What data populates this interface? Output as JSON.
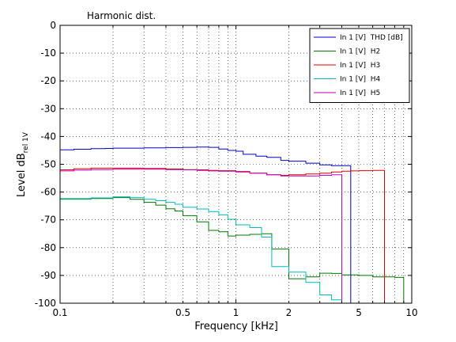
{
  "chart_data": {
    "type": "line",
    "title": "Harmonic dist.",
    "xlabel": "Frequency [kHz]",
    "ylabel_main": "Level dB",
    "ylabel_sub": "rel 1V",
    "xscale": "log",
    "xlim": [
      0.1,
      10
    ],
    "ylim": [
      -100,
      0
    ],
    "grid": true,
    "legend_position": "top-right",
    "x_ticks": [
      {
        "value": 0.1,
        "label": "0.1"
      },
      {
        "value": 0.5,
        "label": "0.5"
      },
      {
        "value": 1,
        "label": "1"
      },
      {
        "value": 2,
        "label": "2"
      },
      {
        "value": 5,
        "label": "5"
      },
      {
        "value": 10,
        "label": "10"
      }
    ],
    "y_ticks": [
      {
        "value": 0,
        "label": "0"
      },
      {
        "value": -10,
        "label": "-10"
      },
      {
        "value": -20,
        "label": "-20"
      },
      {
        "value": -30,
        "label": "-30"
      },
      {
        "value": -40,
        "label": "-40"
      },
      {
        "value": -50,
        "label": "-50"
      },
      {
        "value": -60,
        "label": "-60"
      },
      {
        "value": -70,
        "label": "-70"
      },
      {
        "value": -80,
        "label": "-80"
      },
      {
        "value": -90,
        "label": "-90"
      },
      {
        "value": -100,
        "label": "-100"
      }
    ],
    "series": [
      {
        "name": "In 1 [V]  THD [dB]",
        "color": "#0000cc",
        "x": [
          0.1,
          0.12,
          0.15,
          0.18,
          0.2,
          0.25,
          0.3,
          0.4,
          0.5,
          0.6,
          0.7,
          0.8,
          0.9,
          1.0,
          1.1,
          1.3,
          1.5,
          1.8,
          2.0,
          2.5,
          3.0,
          3.5,
          4.5
        ],
        "y": [
          -44.8,
          -44.6,
          -44.4,
          -44.3,
          -44.2,
          -44.2,
          -44.1,
          -44.0,
          -43.9,
          -43.8,
          -43.9,
          -44.5,
          -45.0,
          -45.3,
          -46.4,
          -47.1,
          -47.5,
          -48.6,
          -48.9,
          -49.6,
          -50.2,
          -50.5,
          -50.5
        ]
      },
      {
        "name": "In 1 [V]  H2",
        "color": "#007700",
        "x": [
          0.1,
          0.15,
          0.2,
          0.25,
          0.3,
          0.35,
          0.4,
          0.45,
          0.5,
          0.6,
          0.7,
          0.8,
          0.9,
          1.0,
          1.2,
          1.4,
          1.6,
          2.0,
          2.5,
          3.0,
          3.5,
          4.0,
          5.0,
          6.0,
          8.0,
          9.0
        ],
        "y": [
          -62.4,
          -62.3,
          -62.0,
          -62.6,
          -63.7,
          -64.7,
          -66.0,
          -66.8,
          -68.5,
          -70.7,
          -73.8,
          -74.3,
          -75.8,
          -75.5,
          -75.2,
          -75.0,
          -80.5,
          -91.2,
          -90.5,
          -89.2,
          -89.3,
          -89.8,
          -90.0,
          -90.5,
          -90.7,
          -90.7
        ]
      },
      {
        "name": "In 1 [V]  H3",
        "color": "#dd0000",
        "x": [
          0.1,
          0.12,
          0.15,
          0.2,
          0.3,
          0.4,
          0.5,
          0.6,
          0.7,
          0.8,
          1.0,
          1.2,
          1.5,
          1.8,
          2.0,
          2.5,
          3.0,
          3.5,
          4.0,
          4.5,
          5.0,
          6.0,
          7.0
        ],
        "y": [
          -52.0,
          -51.6,
          -51.4,
          -51.4,
          -51.5,
          -51.7,
          -51.9,
          -52.0,
          -52.2,
          -52.3,
          -52.6,
          -53.2,
          -53.8,
          -54.0,
          -53.8,
          -53.5,
          -53.2,
          -52.8,
          -52.5,
          -52.4,
          -52.3,
          -52.2,
          -52.1
        ]
      },
      {
        "name": "In 1 [V]  H4",
        "color": "#00bbbb",
        "x": [
          0.1,
          0.15,
          0.2,
          0.25,
          0.3,
          0.35,
          0.4,
          0.45,
          0.5,
          0.6,
          0.7,
          0.8,
          0.9,
          1.0,
          1.2,
          1.4,
          1.6,
          2.0,
          2.5,
          3.0,
          3.5,
          4.0
        ],
        "y": [
          -62.6,
          -62.1,
          -61.7,
          -62.0,
          -62.6,
          -63.1,
          -63.7,
          -64.4,
          -65.5,
          -66.1,
          -67.0,
          -68.2,
          -69.8,
          -71.8,
          -72.8,
          -76.2,
          -86.8,
          -88.8,
          -92.5,
          -97.0,
          -98.8,
          -98.8
        ]
      },
      {
        "name": "In 1 [V]  H5",
        "color": "#bb00bb",
        "x": [
          0.1,
          0.12,
          0.15,
          0.2,
          0.3,
          0.4,
          0.5,
          0.6,
          0.7,
          0.8,
          1.0,
          1.2,
          1.5,
          1.8,
          2.0,
          2.5,
          3.0,
          3.5,
          4.0
        ],
        "y": [
          -52.4,
          -52.1,
          -51.9,
          -51.8,
          -51.8,
          -51.9,
          -52.0,
          -52.2,
          -52.4,
          -52.5,
          -52.8,
          -53.2,
          -53.8,
          -54.2,
          -54.2,
          -54.2,
          -54.0,
          -53.8,
          -53.7
        ]
      }
    ]
  }
}
